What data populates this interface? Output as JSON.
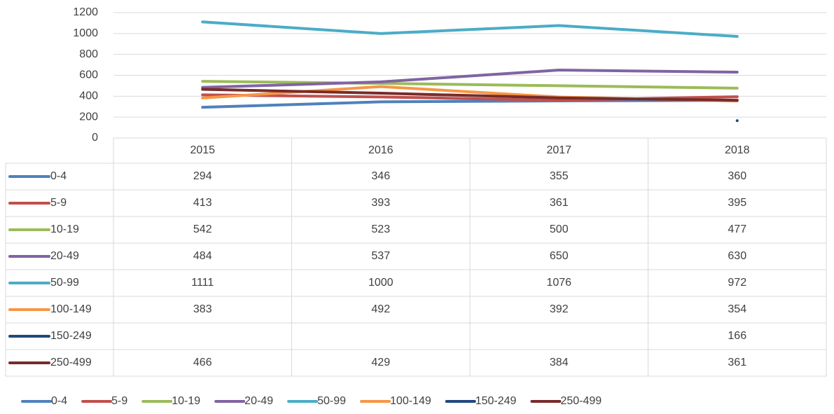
{
  "chart_data": {
    "type": "line",
    "categories": [
      "2015",
      "2016",
      "2017",
      "2018"
    ],
    "series": [
      {
        "name": "0-4",
        "color": "#4f81bd",
        "values": [
          294,
          346,
          355,
          360
        ]
      },
      {
        "name": "5-9",
        "color": "#c0504d",
        "values": [
          413,
          393,
          361,
          395
        ]
      },
      {
        "name": "10-19",
        "color": "#9bbb59",
        "values": [
          542,
          523,
          500,
          477
        ]
      },
      {
        "name": "20-49",
        "color": "#8064a2",
        "values": [
          484,
          537,
          650,
          630
        ]
      },
      {
        "name": "50-99",
        "color": "#4bacc6",
        "values": [
          1111,
          1000,
          1076,
          972
        ]
      },
      {
        "name": "100-149",
        "color": "#f79646",
        "values": [
          383,
          492,
          392,
          354
        ]
      },
      {
        "name": "150-249",
        "color": "#1f497d",
        "values": [
          null,
          null,
          null,
          166
        ]
      },
      {
        "name": "250-499",
        "color": "#772c2a",
        "values": [
          466,
          429,
          384,
          361
        ]
      }
    ],
    "ylim": [
      0,
      1200
    ],
    "yticks": [
      0,
      200,
      400,
      600,
      800,
      1000,
      1200
    ],
    "grid": true,
    "legend": "bottom",
    "data_table": true
  }
}
